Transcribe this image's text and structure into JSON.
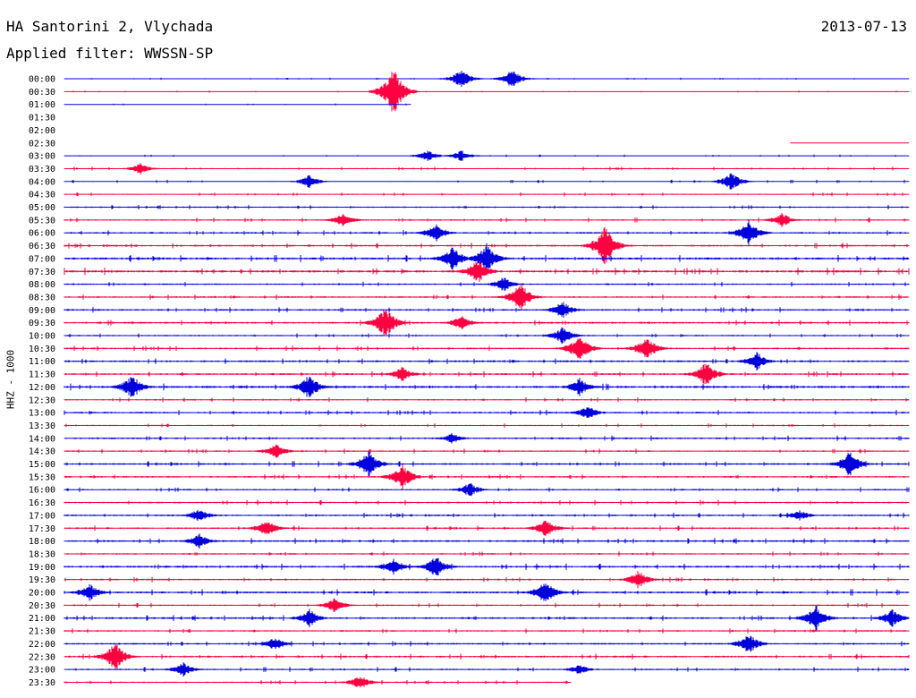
{
  "header": {
    "station": "HA Santorini 2, Vlychada",
    "filter": "Applied filter: WWSSN-SP",
    "date": "2013-07-13"
  },
  "chart_data": {
    "type": "line",
    "title": "HA Santorini 2, Vlychada",
    "subtitle": "Applied filter: WWSSN-SP",
    "ylabel": "HHZ - 1000",
    "colors": [
      "#0000dd",
      "#ff0040"
    ],
    "time_labels": [
      "00:00",
      "00:30",
      "01:00",
      "01:30",
      "02:00",
      "02:30",
      "03:00",
      "03:30",
      "04:00",
      "04:30",
      "05:00",
      "05:30",
      "06:00",
      "06:30",
      "07:00",
      "07:30",
      "08:00",
      "08:30",
      "09:00",
      "09:30",
      "10:00",
      "10:30",
      "11:00",
      "11:30",
      "12:00",
      "12:30",
      "13:00",
      "13:30",
      "14:00",
      "14:30",
      "15:00",
      "15:30",
      "16:00",
      "16:30",
      "17:00",
      "17:30",
      "18:00",
      "18:30",
      "19:00",
      "19:30",
      "20:00",
      "20:30",
      "21:00",
      "21:30",
      "22:00",
      "22:30",
      "23:00",
      "23:30"
    ],
    "trace_extent": [
      [
        0,
        1
      ],
      [
        0,
        1
      ],
      [
        0,
        0.41
      ],
      [
        0,
        0
      ],
      [
        0,
        0
      ],
      [
        0.86,
        1
      ],
      [
        0,
        1
      ],
      [
        0,
        1
      ],
      [
        0,
        1
      ],
      [
        0,
        1
      ],
      [
        0,
        1
      ],
      [
        0,
        1
      ],
      [
        0,
        1
      ],
      [
        0,
        1
      ],
      [
        0,
        1
      ],
      [
        0,
        1
      ],
      [
        0,
        1
      ],
      [
        0,
        1
      ],
      [
        0,
        1
      ],
      [
        0,
        1
      ],
      [
        0,
        1
      ],
      [
        0,
        1
      ],
      [
        0,
        1
      ],
      [
        0,
        1
      ],
      [
        0,
        1
      ],
      [
        0,
        1
      ],
      [
        0,
        1
      ],
      [
        0,
        1
      ],
      [
        0,
        1
      ],
      [
        0,
        1
      ],
      [
        0,
        1
      ],
      [
        0,
        1
      ],
      [
        0,
        1
      ],
      [
        0,
        1
      ],
      [
        0,
        1
      ],
      [
        0,
        1
      ],
      [
        0,
        1
      ],
      [
        0,
        1
      ],
      [
        0,
        1
      ],
      [
        0,
        1
      ],
      [
        0,
        1
      ],
      [
        0,
        1
      ],
      [
        0,
        1
      ],
      [
        0,
        1
      ],
      [
        0,
        1
      ],
      [
        0,
        1
      ],
      [
        0,
        1
      ],
      [
        0,
        0.6
      ]
    ],
    "amplitude_level": [
      0.2,
      0.2,
      0.2,
      0,
      0,
      0.1,
      0.25,
      0.4,
      0.35,
      0.4,
      0.45,
      0.5,
      0.55,
      0.6,
      0.7,
      0.75,
      0.5,
      0.55,
      0.55,
      0.6,
      0.45,
      0.55,
      0.6,
      0.6,
      0.7,
      0.5,
      0.55,
      0.45,
      0.55,
      0.5,
      0.6,
      0.55,
      0.5,
      0.55,
      0.55,
      0.55,
      0.6,
      0.5,
      0.65,
      0.55,
      0.65,
      0.5,
      0.6,
      0.5,
      0.55,
      0.6,
      0.5,
      0.45
    ],
    "events": [
      {
        "row": 0,
        "x": 0.47,
        "a": 10
      },
      {
        "row": 0,
        "x": 0.53,
        "a": 10
      },
      {
        "row": 1,
        "x": 0.39,
        "a": 26
      },
      {
        "row": 6,
        "x": 0.43,
        "a": 6
      },
      {
        "row": 6,
        "x": 0.47,
        "a": 6
      },
      {
        "row": 7,
        "x": 0.09,
        "a": 6
      },
      {
        "row": 8,
        "x": 0.29,
        "a": 7
      },
      {
        "row": 8,
        "x": 0.79,
        "a": 10
      },
      {
        "row": 11,
        "x": 0.33,
        "a": 8
      },
      {
        "row": 11,
        "x": 0.85,
        "a": 8
      },
      {
        "row": 12,
        "x": 0.81,
        "a": 14
      },
      {
        "row": 12,
        "x": 0.44,
        "a": 10
      },
      {
        "row": 13,
        "x": 0.64,
        "a": 22
      },
      {
        "row": 14,
        "x": 0.46,
        "a": 14
      },
      {
        "row": 14,
        "x": 0.5,
        "a": 16
      },
      {
        "row": 15,
        "x": 0.49,
        "a": 14
      },
      {
        "row": 16,
        "x": 0.52,
        "a": 8
      },
      {
        "row": 17,
        "x": 0.54,
        "a": 16
      },
      {
        "row": 18,
        "x": 0.59,
        "a": 10
      },
      {
        "row": 19,
        "x": 0.38,
        "a": 18
      },
      {
        "row": 19,
        "x": 0.47,
        "a": 8
      },
      {
        "row": 20,
        "x": 0.59,
        "a": 10
      },
      {
        "row": 21,
        "x": 0.61,
        "a": 16
      },
      {
        "row": 21,
        "x": 0.69,
        "a": 14
      },
      {
        "row": 22,
        "x": 0.82,
        "a": 10
      },
      {
        "row": 23,
        "x": 0.76,
        "a": 14
      },
      {
        "row": 23,
        "x": 0.4,
        "a": 8
      },
      {
        "row": 24,
        "x": 0.08,
        "a": 14
      },
      {
        "row": 24,
        "x": 0.29,
        "a": 14
      },
      {
        "row": 24,
        "x": 0.61,
        "a": 10
      },
      {
        "row": 26,
        "x": 0.62,
        "a": 8
      },
      {
        "row": 28,
        "x": 0.46,
        "a": 6
      },
      {
        "row": 29,
        "x": 0.25,
        "a": 8
      },
      {
        "row": 30,
        "x": 0.36,
        "a": 14
      },
      {
        "row": 30,
        "x": 0.93,
        "a": 14
      },
      {
        "row": 31,
        "x": 0.4,
        "a": 14
      },
      {
        "row": 32,
        "x": 0.48,
        "a": 8
      },
      {
        "row": 34,
        "x": 0.16,
        "a": 8
      },
      {
        "row": 34,
        "x": 0.87,
        "a": 6
      },
      {
        "row": 35,
        "x": 0.24,
        "a": 10
      },
      {
        "row": 35,
        "x": 0.57,
        "a": 10
      },
      {
        "row": 36,
        "x": 0.16,
        "a": 8
      },
      {
        "row": 38,
        "x": 0.44,
        "a": 12
      },
      {
        "row": 38,
        "x": 0.39,
        "a": 10
      },
      {
        "row": 39,
        "x": 0.68,
        "a": 10
      },
      {
        "row": 40,
        "x": 0.03,
        "a": 10
      },
      {
        "row": 40,
        "x": 0.57,
        "a": 14
      },
      {
        "row": 41,
        "x": 0.32,
        "a": 8
      },
      {
        "row": 42,
        "x": 0.29,
        "a": 10
      },
      {
        "row": 42,
        "x": 0.89,
        "a": 14
      },
      {
        "row": 42,
        "x": 0.98,
        "a": 10
      },
      {
        "row": 44,
        "x": 0.81,
        "a": 12
      },
      {
        "row": 44,
        "x": 0.25,
        "a": 8
      },
      {
        "row": 45,
        "x": 0.06,
        "a": 16
      },
      {
        "row": 46,
        "x": 0.14,
        "a": 8
      },
      {
        "row": 46,
        "x": 0.61,
        "a": 6
      },
      {
        "row": 47,
        "x": 0.35,
        "a": 8
      }
    ]
  }
}
